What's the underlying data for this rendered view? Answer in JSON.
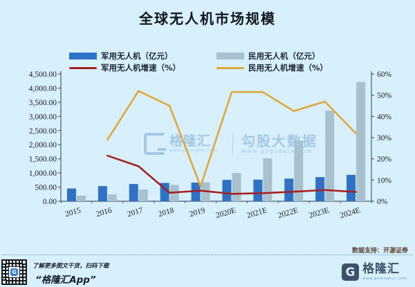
{
  "title": "全球无人机市场规模",
  "legend": [
    {
      "label": "军用无人机（亿元）",
      "type": "bar",
      "color": "#2e72c6"
    },
    {
      "label": "民用无人机（亿元）",
      "type": "bar",
      "color": "#a9c0cf"
    },
    {
      "label": "军用无人机增速（%）",
      "type": "line",
      "color": "#a6201f"
    },
    {
      "label": "民用无人机增速（%）",
      "type": "line",
      "color": "#dfa63c"
    }
  ],
  "chart_data": {
    "type": "bar",
    "subtype": "combo-bar-line-dual-axis",
    "title": "全球无人机市场规模",
    "categories": [
      "2015",
      "2016",
      "2017",
      "2018",
      "2019",
      "2020E",
      "2021E",
      "2022E",
      "2023E",
      "2024E"
    ],
    "series": [
      {
        "name": "军用无人机（亿元）",
        "type": "bar",
        "axis": "left",
        "color": "#2e72c6",
        "values": [
          450,
          535,
          610,
          650,
          660,
          755,
          765,
          800,
          855,
          935
        ]
      },
      {
        "name": "民用无人机（亿元）",
        "type": "bar",
        "axis": "left",
        "color": "#a9c0cf",
        "values": [
          200,
          240,
          410,
          575,
          670,
          1000,
          1520,
          2150,
          3200,
          4215
        ]
      },
      {
        "name": "军用无人机增速（%）",
        "type": "line",
        "axis": "right",
        "color": "#a6201f",
        "values": [
          null,
          21.5,
          16.5,
          4,
          5,
          3.5,
          3.8,
          4.5,
          5.3,
          4.4
        ]
      },
      {
        "name": "民用无人机增速（%）",
        "type": "line",
        "axis": "right",
        "color": "#dfa63c",
        "values": [
          null,
          29,
          52,
          45,
          7,
          51.5,
          51.5,
          42.5,
          47,
          32
        ]
      }
    ],
    "left_axis": {
      "min": 0,
      "max": 4500,
      "step": 500,
      "tick_labels": [
        "0.00",
        "500.00",
        "1,000.00",
        "1,500.00",
        "2,000.00",
        "2,500.00",
        "3,000.00",
        "3,500.00",
        "4,000.00",
        "4,500.00"
      ]
    },
    "right_axis": {
      "min": 0,
      "max": 60,
      "step": 10,
      "tick_labels": [
        "0%",
        "10%",
        "20%",
        "30%",
        "40%",
        "50%",
        "60%"
      ]
    },
    "grid": false,
    "legend_position": "top"
  },
  "watermark": {
    "brand": "格隆汇",
    "brand_sub": "www.gelonghui.com",
    "product": "勾股大数据",
    "url": "www.gogudata.com"
  },
  "footer": {
    "source": "数据支持：开源证券",
    "app_line1": "了解更多图文干货，扫码下载",
    "app_line2": "“格隆汇App”",
    "brand_g": "G",
    "brand_name": "格隆汇",
    "brand_url": "www.gelonghui.com",
    "qr_logo_letter": "G"
  },
  "colors": {
    "background": "#d8f0fb",
    "axis": "#4a5a6a",
    "text": "#1c1c1c"
  }
}
